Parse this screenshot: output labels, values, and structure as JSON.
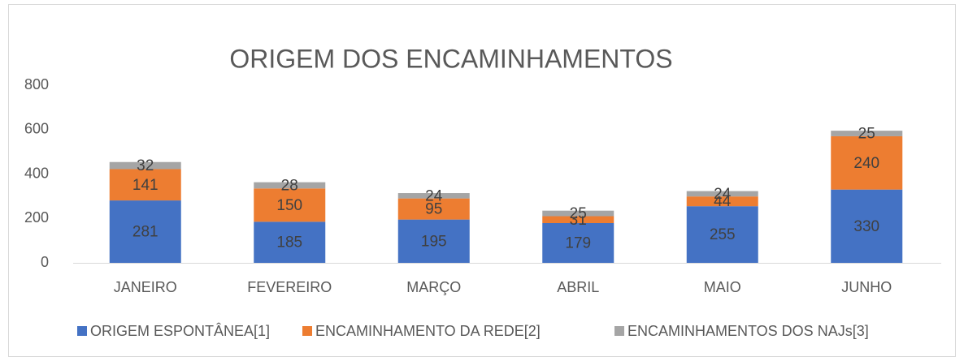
{
  "chart_data": {
    "type": "stacked_bar",
    "title": "ORIGEM DOS ENCAMINHAMENTOS",
    "categories": [
      "JANEIRO",
      "FEVEREIRO",
      "MARÇO",
      "ABRIL",
      "MAIO",
      "JUNHO"
    ],
    "series": [
      {
        "name": "ORIGEM ESPONTÂNEA[1]",
        "color": "#4472c4",
        "values": [
          281,
          185,
          195,
          179,
          255,
          330
        ]
      },
      {
        "name": "ENCAMINHAMENTO DA REDE[2]",
        "color": "#ed7d31",
        "values": [
          141,
          150,
          95,
          31,
          44,
          240
        ]
      },
      {
        "name": "ENCAMINHAMENTOS DOS NAJs[3]",
        "color": "#a5a5a5",
        "values": [
          32,
          28,
          24,
          25,
          24,
          25
        ]
      }
    ],
    "ylim": [
      0,
      800
    ],
    "yticks": [
      0,
      200,
      400,
      600,
      800
    ],
    "grid": false,
    "legend": "bottom"
  }
}
